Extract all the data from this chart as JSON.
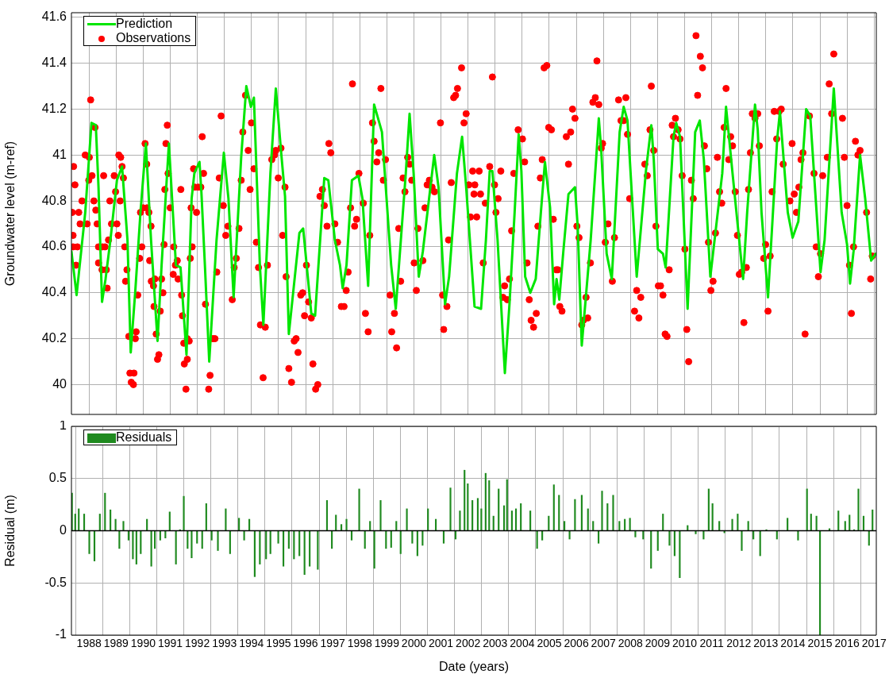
{
  "chart_data": [
    {
      "type": "line",
      "ylabel": "Groundwater level (m-ref)",
      "xlim": [
        1987.35,
        2017.08
      ],
      "xticks": [
        {
          "value": 1988,
          "label": null
        },
        {
          "value": 1989,
          "label": null
        },
        {
          "value": 1990,
          "label": null
        },
        {
          "value": 1991,
          "label": null
        },
        {
          "value": 1992,
          "label": null
        },
        {
          "value": 1993,
          "label": null
        },
        {
          "value": 1994,
          "label": null
        },
        {
          "value": 1995,
          "label": null
        },
        {
          "value": 1996,
          "label": null
        },
        {
          "value": 1997,
          "label": null
        },
        {
          "value": 1998,
          "label": null
        },
        {
          "value": 1999,
          "label": null
        },
        {
          "value": 2000,
          "label": null
        },
        {
          "value": 2001,
          "label": null
        },
        {
          "value": 2002,
          "label": null
        },
        {
          "value": 2003,
          "label": null
        },
        {
          "value": 2004,
          "label": null
        },
        {
          "value": 2005,
          "label": null
        },
        {
          "value": 2006,
          "label": null
        },
        {
          "value": 2007,
          "label": null
        },
        {
          "value": 2008,
          "label": null
        },
        {
          "value": 2009,
          "label": null
        },
        {
          "value": 2010,
          "label": null
        },
        {
          "value": 2011,
          "label": null
        },
        {
          "value": 2012,
          "label": null
        },
        {
          "value": 2013,
          "label": null
        },
        {
          "value": 2014,
          "label": null
        },
        {
          "value": 2015,
          "label": null
        },
        {
          "value": 2016,
          "label": null
        },
        {
          "value": 2017,
          "label": null
        }
      ],
      "ylim": [
        39.87,
        41.62
      ],
      "yticks": [
        40,
        40.2,
        40.4,
        40.6,
        40.8,
        41,
        41.2,
        41.4,
        41.6
      ],
      "tick_labels": "y",
      "grid": true,
      "legend": "top left",
      "series": [
        {
          "name": "Prediction",
          "type": "line",
          "color": "#00e600",
          "marker": "none",
          "x": [
            1987.35,
            1987.54,
            1987.86,
            1988.09,
            1988.25,
            1988.35,
            1988.48,
            1988.61,
            1988.79,
            1989.03,
            1989.22,
            1989.42,
            1989.54,
            1989.71,
            1989.9,
            1990.1,
            1990.29,
            1990.53,
            1990.68,
            1990.95,
            1991.21,
            1991.38,
            1991.6,
            1991.79,
            1991.89,
            1992.08,
            1992.15,
            1992.28,
            1992.44,
            1992.71,
            1992.98,
            1993.15,
            1993.34,
            1993.62,
            1993.81,
            1993.98,
            1994.09,
            1994.31,
            1994.44,
            1994.7,
            1994.9,
            1995.09,
            1995.24,
            1995.38,
            1995.77,
            1995.91,
            1996.21,
            1996.35,
            1996.69,
            1996.84,
            1997.08,
            1997.27,
            1997.37,
            1997.51,
            1997.71,
            1997.95,
            1998.1,
            1998.31,
            1998.53,
            1998.82,
            1999.16,
            1999.33,
            1999.7,
            1999.84,
            1999.99,
            2000.18,
            2000.33,
            2000.75,
            2000.91,
            2001.15,
            2001.3,
            2001.59,
            2001.78,
            2001.93,
            2002.24,
            2002.48,
            2002.66,
            2002.8,
            2002.9,
            2003.09,
            2003.36,
            2003.53,
            2003.72,
            2003.87,
            2003.97,
            2004.11,
            2004.3,
            2004.5,
            2004.69,
            2004.84,
            2005.03,
            2005.18,
            2005.27,
            2005.37,
            2005.52,
            2005.71,
            2005.95,
            2006.05,
            2006.2,
            2006.53,
            2006.73,
            2006.83,
            2006.92,
            2007.12,
            2007.31,
            2007.6,
            2007.75,
            2007.89,
            2008.23,
            2008.57,
            2008.77,
            2008.86,
            2009.01,
            2009.2,
            2009.3,
            2009.59,
            2009.69,
            2009.83,
            2010.11,
            2010.39,
            2010.56,
            2010.71,
            2010.95,
            2011.39,
            2011.53,
            2011.77,
            2012.16,
            2012.31,
            2012.6,
            2012.7,
            2012.84,
            2013.08,
            2013.42,
            2013.52,
            2013.81,
            2013.99,
            2014.2,
            2014.49,
            2014.64,
            2015.02,
            2015.17,
            2015.51,
            2015.8,
            2016.0,
            2016.11,
            2016.24,
            2016.48,
            2016.67,
            2016.89,
            2017.06
          ],
          "values": [
            40.58,
            40.39,
            40.75,
            41.14,
            41.13,
            40.86,
            40.36,
            40.46,
            40.63,
            40.89,
            40.95,
            40.63,
            40.14,
            40.41,
            40.75,
            41.05,
            40.63,
            40.19,
            40.52,
            41.05,
            40.52,
            40.51,
            40.13,
            40.81,
            40.92,
            40.97,
            40.84,
            40.52,
            40.1,
            40.63,
            41.01,
            40.81,
            40.38,
            40.99,
            41.3,
            41.21,
            41.25,
            40.52,
            40.26,
            40.92,
            41.29,
            41.02,
            40.82,
            40.22,
            40.66,
            40.68,
            40.31,
            40.3,
            40.9,
            40.89,
            40.63,
            40.52,
            40.42,
            40.52,
            40.89,
            40.91,
            40.81,
            40.43,
            41.22,
            41.1,
            40.52,
            40.33,
            40.92,
            41.18,
            40.92,
            40.47,
            40.58,
            41.0,
            40.86,
            40.35,
            40.47,
            40.92,
            41.08,
            40.86,
            40.34,
            40.33,
            40.63,
            40.93,
            40.93,
            40.63,
            40.05,
            40.35,
            40.75,
            41.09,
            40.93,
            40.47,
            40.4,
            40.46,
            40.75,
            40.97,
            40.77,
            40.35,
            40.46,
            40.37,
            40.58,
            40.83,
            40.86,
            40.69,
            40.17,
            40.63,
            40.98,
            41.16,
            41.02,
            40.57,
            40.46,
            41.1,
            41.21,
            41.15,
            40.47,
            40.93,
            41.13,
            40.98,
            40.59,
            40.57,
            40.51,
            41.08,
            41.14,
            41.08,
            40.33,
            41.1,
            41.15,
            40.98,
            40.47,
            40.92,
            41.21,
            40.92,
            40.46,
            40.75,
            41.22,
            41.11,
            40.75,
            40.38,
            41.07,
            41.19,
            40.75,
            40.64,
            40.71,
            41.2,
            41.17,
            40.49,
            40.63,
            41.29,
            40.75,
            40.61,
            40.44,
            40.58,
            41.0,
            40.81,
            40.54,
            40.57
          ]
        },
        {
          "name": "Observations",
          "type": "scatter",
          "color": "#ff0000",
          "marker": "circle",
          "x": [
            1987.43,
            1987.48,
            1987.38,
            1987.41,
            1987.41,
            1987.57,
            1987.62,
            1987.67,
            1987.52,
            1987.74,
            1987.86,
            1988.01,
            1987.93,
            1988.06,
            1988.22,
            1988.11,
            1987.99,
            1988.18,
            1988.25,
            1988.3,
            1988.35,
            1988.5,
            1988.59,
            1988.35,
            1988.48,
            1988.64,
            1988.67,
            1988.54,
            1988.72,
            1988.77,
            1988.83,
            1988.93,
            1988.98,
            1989.03,
            1989.08,
            1989.1,
            1989.17,
            1989.22,
            1989.27,
            1989.15,
            1989.32,
            1989.4,
            1989.35,
            1989.47,
            1989.74,
            1989.71,
            1989.51,
            1989.66,
            1989.56,
            1989.64,
            1989.8,
            1989.87,
            1989.95,
            1989.9,
            1990.0,
            1990.14,
            1990.07,
            1990.13,
            1990.21,
            1990.29,
            1990.24,
            1990.3,
            1990.38,
            1990.43,
            1990.4,
            1990.48,
            1990.58,
            1990.53,
            1990.63,
            1990.68,
            1990.73,
            1990.77,
            1990.8,
            1990.89,
            1990.84,
            1990.92,
            1991.0,
            1991.13,
            1991.26,
            1991.19,
            1991.11,
            1991.29,
            1991.39,
            1991.42,
            1991.45,
            1991.5,
            1991.63,
            1991.7,
            1991.52,
            1991.63,
            1991.58,
            1991.74,
            1991.81,
            1991.77,
            1991.86,
            1991.91,
            1991.97,
            1992.03,
            1992.13,
            1992.23,
            1992.18,
            1992.3,
            1992.47,
            1992.42,
            1992.57,
            1992.65,
            1992.72,
            1992.81,
            1992.88,
            1992.96,
            1993.05,
            1993.13,
            1993.29,
            1993.36,
            1993.44,
            1993.54,
            1993.62,
            1993.68,
            1993.78,
            1993.88,
            1993.95,
            1994.0,
            1994.09,
            1994.18,
            1994.26,
            1994.33,
            1994.51,
            1994.59,
            1994.43,
            1994.75,
            1994.85,
            1994.9,
            1995.09,
            1994.99,
            1995.24,
            1995.15,
            1995.28,
            1995.38,
            1995.48,
            1995.58,
            1995.65,
            1995.72,
            1995.82,
            1995.89,
            1995.96,
            1996.03,
            1996.11,
            1996.21,
            1996.27,
            1996.37,
            1996.45,
            1996.53,
            1996.62,
            1996.69,
            1996.79,
            1996.86,
            1996.93,
            1997.08,
            1997.18,
            1997.32,
            1997.42,
            1997.5,
            1997.57,
            1997.66,
            1997.73,
            1997.81,
            1997.88,
            1997.97,
            1998.13,
            1998.21,
            1998.31,
            1998.37,
            1998.47,
            1998.53,
            1998.63,
            1998.7,
            1998.78,
            1998.87,
            1998.95,
            1999.12,
            1999.18,
            1999.28,
            1999.36,
            1999.44,
            1999.51,
            1999.6,
            1999.67,
            1999.77,
            1999.84,
            1999.92,
            2000.01,
            2000.09,
            2000.15,
            2000.33,
            2000.41,
            2000.49,
            2000.57,
            2000.67,
            2000.76,
            2000.98,
            2001.06,
            2001.1,
            2001.22,
            2001.28,
            2001.38,
            2001.47,
            2001.54,
            2001.61,
            2001.76,
            2001.85,
            2001.93,
            2002.03,
            2002.09,
            2002.17,
            2002.22,
            2002.41,
            2002.25,
            2002.46,
            2002.32,
            2002.64,
            2002.56,
            2002.8,
            2002.9,
            2002.98,
            2003.03,
            2003.11,
            2003.21,
            2003.29,
            2003.35,
            2003.45,
            2003.53,
            2003.61,
            2003.69,
            2003.85,
            2004.01,
            2004.09,
            2004.18,
            2004.26,
            2004.33,
            2004.42,
            2004.52,
            2004.58,
            2004.67,
            2004.74,
            2004.81,
            2004.91,
            2004.98,
            2005.08,
            2005.15,
            2005.26,
            2005.32,
            2005.39,
            2005.47,
            2005.63,
            2005.71,
            2005.79,
            2005.86,
            2005.95,
            2006.02,
            2006.1,
            2006.2,
            2006.26,
            2006.36,
            2006.42,
            2006.52,
            2006.61,
            2006.7,
            2006.83,
            2006.76,
            2006.92,
            2006.97,
            2007.07,
            2007.17,
            2007.33,
            2007.41,
            2007.56,
            2007.65,
            2007.75,
            2007.83,
            2007.89,
            2007.97,
            2008.15,
            2008.23,
            2008.31,
            2008.38,
            2008.53,
            2008.62,
            2008.72,
            2008.77,
            2008.86,
            2008.94,
            2009.03,
            2009.11,
            2009.2,
            2009.28,
            2009.35,
            2009.43,
            2009.54,
            2009.59,
            2009.66,
            2009.76,
            2009.83,
            2009.91,
            2010.01,
            2010.08,
            2010.15,
            2010.25,
            2010.32,
            2010.42,
            2010.48,
            2010.58,
            2010.66,
            2010.73,
            2010.82,
            2010.88,
            2010.97,
            2011.05,
            2011.14,
            2011.21,
            2011.29,
            2011.37,
            2011.46,
            2011.53,
            2011.63,
            2011.7,
            2011.77,
            2011.87,
            2011.95,
            2012.02,
            2012.11,
            2012.19,
            2012.28,
            2012.36,
            2012.43,
            2012.5,
            2012.6,
            2012.7,
            2012.76,
            2012.92,
            2012.99,
            2013.08,
            2013.16,
            2013.23,
            2013.31,
            2013.4,
            2013.49,
            2013.57,
            2013.64,
            2013.89,
            2013.97,
            2014.05,
            2014.13,
            2014.22,
            2014.3,
            2014.37,
            2014.45,
            2014.61,
            2014.78,
            2014.86,
            2014.94,
            2015.02,
            2015.1,
            2015.27,
            2015.34,
            2015.43,
            2015.51,
            2015.83,
            2015.9,
            2016.0,
            2016.09,
            2016.16,
            2016.24,
            2016.31,
            2016.4,
            2016.48,
            2016.72,
            2016.87,
            2016.93
          ],
          "values": [
            40.95,
            40.87,
            40.75,
            40.65,
            40.6,
            40.6,
            40.75,
            40.7,
            40.52,
            40.8,
            41.0,
            40.99,
            40.7,
            41.24,
            41.12,
            40.91,
            40.89,
            40.8,
            40.76,
            40.7,
            40.6,
            40.6,
            40.6,
            40.53,
            40.5,
            40.5,
            40.42,
            40.91,
            40.63,
            40.8,
            40.7,
            40.91,
            40.84,
            40.7,
            40.65,
            41.0,
            40.99,
            40.95,
            40.9,
            40.8,
            40.6,
            40.5,
            40.45,
            40.21,
            40.23,
            40.2,
            40.05,
            40.05,
            40.01,
            40.0,
            40.39,
            40.55,
            40.6,
            40.75,
            40.77,
            40.77,
            41.05,
            40.96,
            40.75,
            40.69,
            40.54,
            40.45,
            40.43,
            40.46,
            40.34,
            40.22,
            40.13,
            40.11,
            40.32,
            40.46,
            40.4,
            40.61,
            40.85,
            41.13,
            41.05,
            40.92,
            40.77,
            40.6,
            40.54,
            40.52,
            40.48,
            40.46,
            40.85,
            40.39,
            40.3,
            40.18,
            40.2,
            40.19,
            40.09,
            40.11,
            39.98,
            40.55,
            40.6,
            40.77,
            40.94,
            40.86,
            40.75,
            40.86,
            40.86,
            40.92,
            41.08,
            40.35,
            40.04,
            39.98,
            40.2,
            40.2,
            40.49,
            40.9,
            41.17,
            40.78,
            40.65,
            40.69,
            40.37,
            40.51,
            40.55,
            40.68,
            40.89,
            41.1,
            41.26,
            41.02,
            40.85,
            41.14,
            40.94,
            40.62,
            40.51,
            40.26,
            40.25,
            40.52,
            40.03,
            40.98,
            41.0,
            41.02,
            41.03,
            40.9,
            40.86,
            40.65,
            40.47,
            40.07,
            40.01,
            40.19,
            40.2,
            40.14,
            40.39,
            40.4,
            40.3,
            40.52,
            40.36,
            40.29,
            40.09,
            39.98,
            40.0,
            40.82,
            40.85,
            40.78,
            40.69,
            41.05,
            41.01,
            40.7,
            40.62,
            40.34,
            40.34,
            40.41,
            40.49,
            40.77,
            41.31,
            40.69,
            40.72,
            40.92,
            40.79,
            40.31,
            40.23,
            40.65,
            41.14,
            41.06,
            40.97,
            41.01,
            41.29,
            40.89,
            40.98,
            40.39,
            40.23,
            40.31,
            40.16,
            40.68,
            40.45,
            40.9,
            40.84,
            40.99,
            40.96,
            40.89,
            40.53,
            40.41,
            40.68,
            40.54,
            40.77,
            40.87,
            40.89,
            40.86,
            40.84,
            41.14,
            40.39,
            40.24,
            40.34,
            40.63,
            40.88,
            41.25,
            41.26,
            41.29,
            41.38,
            41.14,
            41.18,
            40.87,
            40.73,
            40.93,
            40.83,
            40.93,
            40.87,
            40.83,
            40.73,
            40.79,
            40.53,
            40.95,
            41.34,
            40.87,
            40.75,
            40.81,
            40.93,
            40.38,
            40.43,
            40.37,
            40.46,
            40.67,
            40.92,
            41.11,
            41.07,
            40.97,
            40.53,
            40.37,
            40.28,
            40.25,
            40.31,
            40.69,
            40.9,
            40.98,
            41.38,
            41.39,
            41.12,
            41.11,
            40.72,
            40.5,
            40.5,
            40.34,
            40.32,
            41.08,
            40.96,
            41.1,
            41.2,
            41.16,
            40.69,
            40.64,
            40.26,
            40.28,
            40.38,
            40.29,
            40.53,
            41.23,
            41.25,
            41.22,
            41.41,
            41.03,
            41.05,
            40.62,
            40.7,
            40.45,
            40.64,
            41.24,
            41.15,
            41.15,
            41.25,
            41.09,
            40.81,
            40.32,
            40.41,
            40.29,
            40.38,
            40.96,
            40.91,
            41.11,
            41.3,
            41.02,
            40.69,
            40.43,
            40.43,
            40.39,
            40.22,
            40.21,
            40.5,
            41.13,
            41.08,
            41.16,
            41.11,
            41.07,
            40.91,
            40.59,
            40.24,
            40.1,
            40.89,
            40.81,
            41.52,
            41.26,
            41.43,
            41.38,
            41.04,
            40.94,
            40.62,
            40.41,
            40.45,
            40.66,
            40.99,
            40.84,
            40.79,
            41.12,
            41.29,
            40.98,
            41.08,
            41.04,
            40.84,
            40.65,
            40.48,
            40.49,
            40.27,
            40.51,
            40.85,
            41.01,
            41.18,
            41.16,
            41.18,
            41.04,
            40.55,
            40.61,
            40.32,
            40.56,
            40.84,
            41.19,
            41.07,
            41.19,
            41.2,
            40.96,
            40.8,
            41.05,
            40.83,
            40.75,
            40.86,
            40.98,
            41.01,
            40.22,
            41.17,
            40.92,
            40.6,
            40.47,
            40.57,
            40.91,
            40.99,
            41.31,
            41.18,
            41.44,
            41.16,
            40.99,
            40.78,
            40.52,
            40.31,
            40.6,
            41.06,
            41.0,
            41.02,
            40.75,
            40.46,
            40.56
          ]
        }
      ]
    },
    {
      "type": "bar",
      "xlabel": "Date (years)",
      "ylabel": "Residual (m)",
      "xlim": [
        1987.35,
        2017.08
      ],
      "xticks": [
        1988,
        1989,
        1990,
        1991,
        1992,
        1993,
        1994,
        1995,
        1996,
        1997,
        1998,
        1999,
        2000,
        2001,
        2002,
        2003,
        2004,
        2005,
        2006,
        2007,
        2008,
        2009,
        2010,
        2011,
        2012,
        2013,
        2014,
        2015,
        2016,
        2017
      ],
      "ylim": [
        -1,
        1
      ],
      "yticks": [
        -1,
        -0.5,
        0,
        0.5,
        1
      ],
      "grid": true,
      "legend": "top left",
      "ref_lines": [
        {
          "axis": "y",
          "value": 0,
          "color": "#000000"
        }
      ],
      "series": [
        {
          "name": "Residuals",
          "type": "bar",
          "color": "#1f8a1f",
          "x": [
            1987.37,
            1987.49,
            1987.62,
            1987.82,
            1988.01,
            1988.2,
            1988.4,
            1988.59,
            1988.79,
            1988.98,
            1989.12,
            1989.27,
            1989.46,
            1989.62,
            1989.75,
            1989.91,
            1990.14,
            1990.3,
            1990.43,
            1990.63,
            1990.82,
            1990.98,
            1991.21,
            1991.36,
            1991.5,
            1991.64,
            1991.79,
            1991.99,
            1992.18,
            1992.33,
            1992.53,
            1992.76,
            1993.05,
            1993.21,
            1993.54,
            1993.73,
            1993.92,
            1994.12,
            1994.31,
            1994.54,
            1994.7,
            1994.99,
            1995.18,
            1995.38,
            1995.57,
            1995.77,
            1995.96,
            1996.15,
            1996.45,
            1996.79,
            1996.97,
            1997.12,
            1997.32,
            1997.51,
            1997.7,
            1997.98,
            1998.19,
            1998.38,
            1998.54,
            1998.77,
            1998.97,
            1999.16,
            1999.35,
            1999.51,
            1999.74,
            1999.94,
            2000.13,
            2000.32,
            2000.52,
            2000.81,
            2001.1,
            2001.35,
            2001.54,
            2001.7,
            2001.87,
            2001.99,
            2002.16,
            2002.36,
            2002.49,
            2002.65,
            2002.78,
            2002.94,
            2003.13,
            2003.33,
            2003.44,
            2003.62,
            2003.77,
            2003.95,
            2004.3,
            2004.55,
            2004.74,
            2004.98,
            2005.17,
            2005.36,
            2005.56,
            2005.75,
            2005.95,
            2006.2,
            2006.43,
            2006.62,
            2006.82,
            2006.95,
            2007.15,
            2007.36,
            2007.59,
            2007.79,
            2007.98,
            2008.18,
            2008.47,
            2008.76,
            2009.01,
            2009.2,
            2009.44,
            2009.63,
            2009.82,
            2010.11,
            2010.41,
            2010.7,
            2010.89,
            2011.03,
            2011.28,
            2011.47,
            2011.76,
            2011.96,
            2012.11,
            2012.35,
            2012.54,
            2012.79,
            2013.02,
            2013.41,
            2013.8,
            2014.19,
            2014.52,
            2014.67,
            2014.87,
            2015.0,
            2015.35,
            2015.68,
            2015.93,
            2016.09,
            2016.26,
            2016.42,
            2016.61,
            2016.81,
            2016.94
          ],
          "values": [
            0.36,
            0.16,
            0.21,
            0.16,
            -0.22,
            -0.29,
            0.16,
            0.36,
            0.2,
            0.11,
            -0.17,
            0.09,
            -0.09,
            -0.27,
            -0.32,
            -0.22,
            0.11,
            -0.34,
            -0.17,
            -0.09,
            -0.07,
            0.18,
            -0.32,
            0.01,
            0.33,
            -0.17,
            -0.26,
            -0.12,
            -0.17,
            0.26,
            -0.09,
            -0.19,
            0.21,
            -0.22,
            0.12,
            -0.09,
            0.11,
            -0.44,
            -0.32,
            -0.27,
            -0.22,
            -0.12,
            -0.34,
            -0.17,
            -0.27,
            -0.24,
            -0.42,
            -0.34,
            -0.37,
            0.29,
            -0.17,
            0.15,
            0.06,
            0.11,
            -0.09,
            0.4,
            -0.17,
            0.09,
            -0.36,
            0.29,
            -0.17,
            -0.16,
            0.09,
            -0.22,
            0.21,
            -0.12,
            -0.24,
            -0.14,
            0.21,
            0.11,
            -0.12,
            0.41,
            -0.08,
            0.19,
            0.58,
            0.45,
            0.29,
            0.31,
            0.21,
            0.55,
            0.48,
            0.14,
            0.4,
            0.24,
            0.49,
            0.19,
            0.21,
            0.26,
            0.19,
            -0.17,
            -0.09,
            0.14,
            0.44,
            0.34,
            0.09,
            -0.08,
            0.3,
            0.34,
            0.21,
            0.09,
            -0.12,
            0.38,
            0.26,
            0.34,
            0.09,
            0.11,
            0.12,
            -0.06,
            -0.08,
            -0.36,
            -0.19,
            0.16,
            -0.14,
            -0.24,
            -0.45,
            0.05,
            -0.03,
            -0.08,
            0.4,
            0.26,
            0.09,
            -0.02,
            0.11,
            0.16,
            -0.19,
            0.09,
            -0.08,
            -0.24,
            0.01,
            -0.08,
            0.12,
            -0.09,
            0.4,
            0.16,
            0.14,
            -1.0,
            0.02,
            0.19,
            0.09,
            0.15,
            0.01,
            0.4,
            0.14,
            -0.14,
            0.2
          ]
        }
      ]
    }
  ]
}
